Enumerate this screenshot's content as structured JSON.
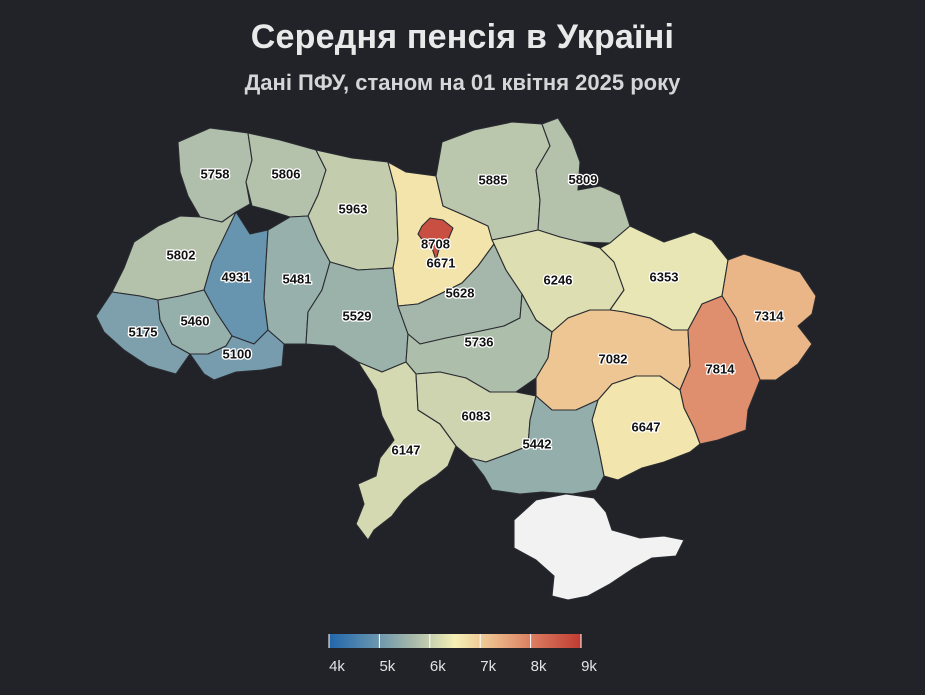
{
  "title": "Середня пенсія в Україні",
  "subtitle": "Дані ПФУ, станом на 01 квітня 2025 року",
  "colors": {
    "background": "#212328",
    "scale": [
      "#2166ac",
      "#5f8fae",
      "#a7b9aa",
      "#f5f0b6",
      "#eab486",
      "#d7735a",
      "#c03b33"
    ],
    "no_data": "#f2f2f2"
  },
  "regions": [
    {
      "id": "volyn",
      "value": 5758
    },
    {
      "id": "rivne",
      "value": 5806
    },
    {
      "id": "zhytomyr",
      "value": 5963
    },
    {
      "id": "kyiv-oblast",
      "value": 6671
    },
    {
      "id": "kyiv-city",
      "value": 8708
    },
    {
      "id": "chernihiv",
      "value": 5885
    },
    {
      "id": "sumy",
      "value": 5809
    },
    {
      "id": "lviv",
      "value": 5802
    },
    {
      "id": "ternopil",
      "value": 4931
    },
    {
      "id": "khmelnytskyi",
      "value": 5481
    },
    {
      "id": "vinnytsia",
      "value": 5529
    },
    {
      "id": "cherkasy",
      "value": 5628
    },
    {
      "id": "poltava",
      "value": 6246
    },
    {
      "id": "kharkiv",
      "value": 6353
    },
    {
      "id": "luhansk",
      "value": 7314
    },
    {
      "id": "zakarpattia",
      "value": 5175
    },
    {
      "id": "ivano-frankivsk",
      "value": 5460
    },
    {
      "id": "chernivtsi",
      "value": 5100
    },
    {
      "id": "kirovohrad",
      "value": 5736
    },
    {
      "id": "dnipropetrovsk",
      "value": 7082
    },
    {
      "id": "donetsk",
      "value": 7814
    },
    {
      "id": "odesa",
      "value": 6147
    },
    {
      "id": "mykolaiv",
      "value": 6083
    },
    {
      "id": "zaporizhzhia",
      "value": 6647
    },
    {
      "id": "kherson",
      "value": 5442
    },
    {
      "id": "crimea",
      "value": null
    }
  ],
  "legend": {
    "min": 4000,
    "max": 9000,
    "ticks": [
      "4k",
      "5k",
      "6k",
      "7k",
      "8k",
      "9k"
    ]
  }
}
